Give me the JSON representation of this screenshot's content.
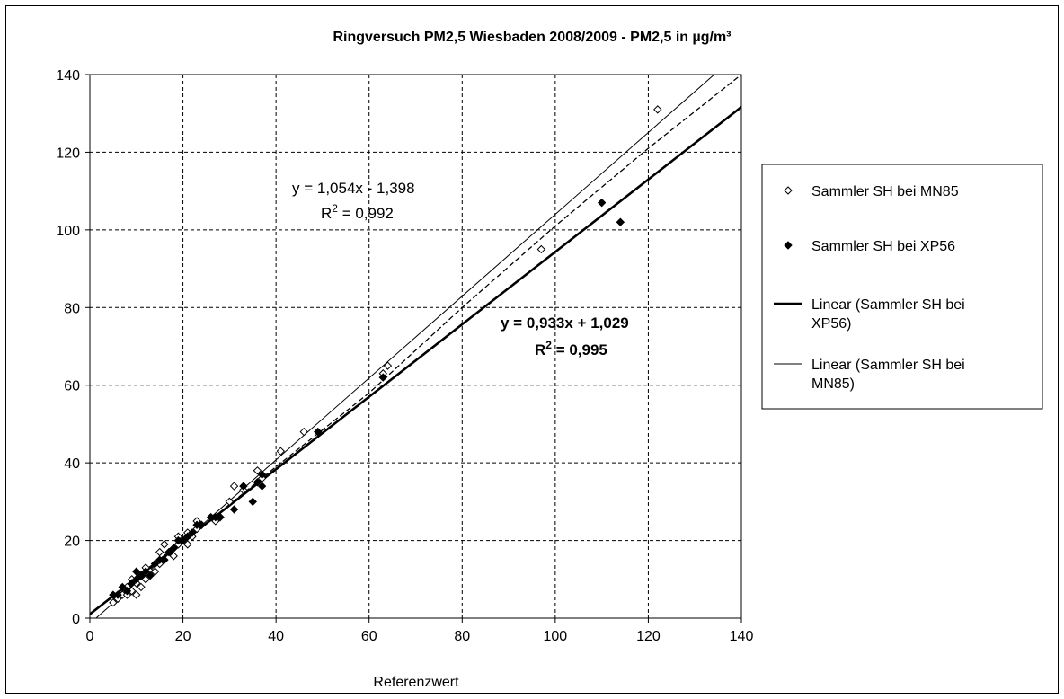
{
  "chart_data": {
    "type": "scatter",
    "title": "Ringversuch PM2,5 Wiesbaden 2008/2009 - PM2,5 in µg/m³",
    "xlabel": "Referenzwert",
    "ylabel": "",
    "xlim": [
      0,
      140
    ],
    "ylim": [
      0,
      140
    ],
    "x_ticks": [
      0,
      20,
      40,
      60,
      80,
      100,
      120,
      140
    ],
    "y_ticks": [
      0,
      20,
      40,
      60,
      80,
      100,
      120,
      140
    ],
    "grid": true,
    "legend_position": "right",
    "series": [
      {
        "name": "Sammler SH bei MN85",
        "marker": "open-diamond",
        "color": "#000000",
        "points": [
          [
            5,
            4
          ],
          [
            6,
            5
          ],
          [
            7,
            6
          ],
          [
            8,
            6
          ],
          [
            8,
            8
          ],
          [
            9,
            7
          ],
          [
            9,
            10
          ],
          [
            10,
            6
          ],
          [
            10,
            9
          ],
          [
            11,
            8
          ],
          [
            11,
            11
          ],
          [
            12,
            10
          ],
          [
            12,
            13
          ],
          [
            13,
            12
          ],
          [
            14,
            12
          ],
          [
            15,
            14
          ],
          [
            15,
            17
          ],
          [
            16,
            15
          ],
          [
            16,
            19
          ],
          [
            17,
            17
          ],
          [
            18,
            16
          ],
          [
            18,
            18
          ],
          [
            19,
            19
          ],
          [
            19,
            21
          ],
          [
            20,
            20
          ],
          [
            21,
            19
          ],
          [
            21,
            22
          ],
          [
            22,
            21
          ],
          [
            23,
            23
          ],
          [
            23,
            25
          ],
          [
            24,
            24
          ],
          [
            27,
            25
          ],
          [
            28,
            26
          ],
          [
            30,
            30
          ],
          [
            31,
            34
          ],
          [
            33,
            33
          ],
          [
            36,
            38
          ],
          [
            37,
            36
          ],
          [
            41,
            43
          ],
          [
            46,
            48
          ],
          [
            63,
            63
          ],
          [
            64,
            65
          ],
          [
            97,
            95
          ],
          [
            122,
            131
          ]
        ]
      },
      {
        "name": "Sammler SH bei XP56",
        "marker": "filled-diamond",
        "color": "#000000",
        "points": [
          [
            5,
            6
          ],
          [
            6,
            6
          ],
          [
            7,
            8
          ],
          [
            8,
            7
          ],
          [
            9,
            9
          ],
          [
            10,
            10
          ],
          [
            10,
            12
          ],
          [
            11,
            11
          ],
          [
            12,
            12
          ],
          [
            13,
            11
          ],
          [
            14,
            14
          ],
          [
            15,
            15
          ],
          [
            16,
            15
          ],
          [
            17,
            17
          ],
          [
            18,
            18
          ],
          [
            19,
            20
          ],
          [
            20,
            20
          ],
          [
            21,
            21
          ],
          [
            22,
            22
          ],
          [
            23,
            24
          ],
          [
            24,
            24
          ],
          [
            26,
            26
          ],
          [
            27,
            26
          ],
          [
            28,
            26
          ],
          [
            31,
            28
          ],
          [
            33,
            34
          ],
          [
            35,
            30
          ],
          [
            36,
            35
          ],
          [
            37,
            34
          ],
          [
            37,
            37
          ],
          [
            49,
            48
          ],
          [
            63,
            62
          ],
          [
            110,
            107
          ],
          [
            114,
            102
          ]
        ]
      },
      {
        "name": "Linear (Sammler SH bei XP56)",
        "type": "line",
        "style": "thick",
        "color": "#000000",
        "slope": 0.933,
        "intercept": 1.029
      },
      {
        "name": "Linear (Sammler SH bei MN85)",
        "type": "line",
        "style": "thin",
        "color": "#000000",
        "slope": 1.054,
        "intercept": -1.398
      },
      {
        "type": "line",
        "style": "dashed",
        "color": "#000000",
        "points": [
          [
            5,
            5
          ],
          [
            20,
            19.5
          ],
          [
            40,
            39
          ],
          [
            60,
            58
          ],
          [
            80,
            80
          ],
          [
            100,
            101
          ],
          [
            120,
            121
          ],
          [
            140,
            140
          ]
        ]
      }
    ],
    "annotations": [
      {
        "eq": "y = 1,054x - 1,398",
        "r2_prefix": "R",
        "r2_sup": "2",
        "r2_value": " = 0,992",
        "bold": false
      },
      {
        "eq": "y = 0,933x + 1,029",
        "r2_prefix": "R",
        "r2_sup": "2",
        "r2_value": " = 0,995",
        "bold": true
      }
    ],
    "legend": [
      {
        "label_lines": [
          "Sammler SH bei MN85"
        ],
        "symbol": "open-diamond"
      },
      {
        "label_lines": [
          "Sammler SH bei XP56"
        ],
        "symbol": "filled-diamond"
      },
      {
        "label_lines": [
          "Linear (Sammler SH bei",
          "XP56)"
        ],
        "symbol": "thick-line"
      },
      {
        "label_lines": [
          "Linear (Sammler SH bei",
          "MN85)"
        ],
        "symbol": "thin-line"
      }
    ]
  }
}
